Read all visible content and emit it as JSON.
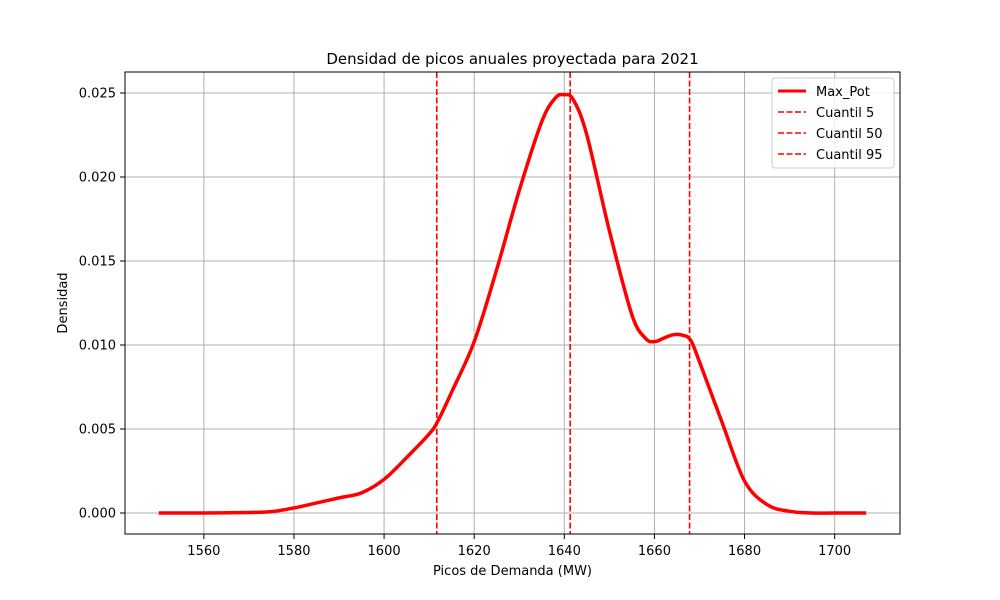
{
  "chart_data": {
    "type": "line",
    "title": "Densidad de picos anuales proyectada para 2021",
    "xlabel": "Picos de Demanda (MW)",
    "ylabel": "Densidad",
    "xlim": [
      1542.5,
      1714.5
    ],
    "ylim": [
      -0.00125,
      0.02625
    ],
    "x_ticks": [
      1560,
      1580,
      1600,
      1620,
      1640,
      1660,
      1680,
      1700
    ],
    "y_ticks": [
      0.0,
      0.005,
      0.01,
      0.015,
      0.02,
      0.025
    ],
    "y_tick_labels": [
      "0.000",
      "0.005",
      "0.010",
      "0.015",
      "0.020",
      "0.025"
    ],
    "grid": true,
    "legend_position": "top-right",
    "colors": {
      "series": "#ff0000",
      "grid": "#b0b0b0",
      "axes": "#000000"
    },
    "series": [
      {
        "name": "Max_Pot",
        "style": "solid",
        "x": [
          1550,
          1560,
          1570,
          1575,
          1580,
          1585,
          1590,
          1595,
          1600,
          1605,
          1610,
          1612,
          1615,
          1620,
          1625,
          1630,
          1635,
          1638,
          1640,
          1642,
          1645,
          1650,
          1655,
          1658,
          1660,
          1662,
          1664,
          1666,
          1668,
          1670,
          1675,
          1680,
          1685,
          1690,
          1695,
          1700,
          1707
        ],
        "y": [
          0.0,
          0.0,
          3e-05,
          8e-05,
          0.0003,
          0.0006,
          0.0009,
          0.0012,
          0.002,
          0.0033,
          0.0047,
          0.0055,
          0.0072,
          0.0102,
          0.0145,
          0.0192,
          0.0233,
          0.0247,
          0.0249,
          0.0246,
          0.0225,
          0.0168,
          0.0118,
          0.0104,
          0.0102,
          0.0104,
          0.0106,
          0.0106,
          0.0103,
          0.009,
          0.0054,
          0.0019,
          0.0005,
          0.0001,
          0.0,
          0.0,
          0.0
        ]
      }
    ],
    "vlines": [
      {
        "name": "Cuantil 5",
        "x": 1611.7,
        "style": "dashed"
      },
      {
        "name": "Cuantil 50",
        "x": 1641.3,
        "style": "dashed"
      },
      {
        "name": "Cuantil 95",
        "x": 1667.8,
        "style": "dashed"
      }
    ]
  }
}
